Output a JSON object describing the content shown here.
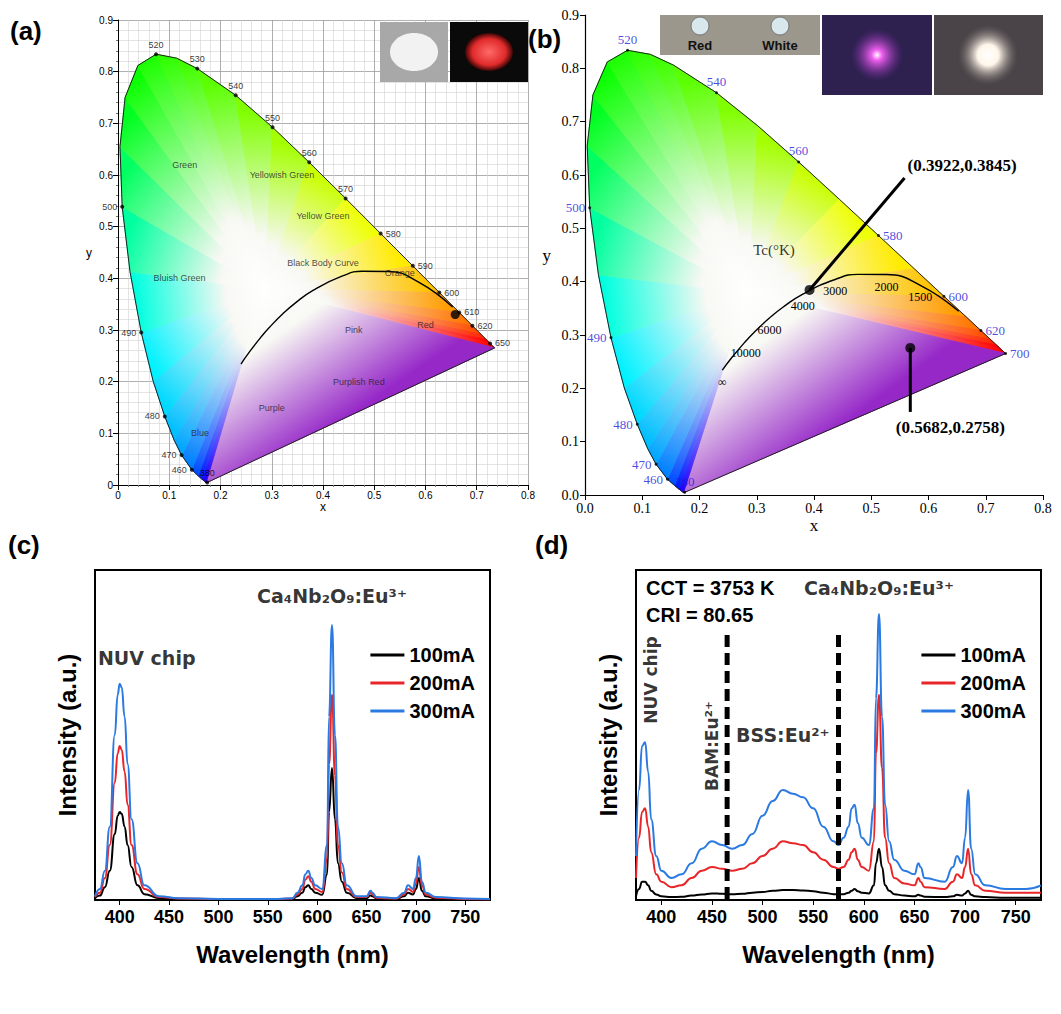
{
  "chart_data": [
    {
      "panel_label": "(a)",
      "type": "chromaticity",
      "x_label": "x",
      "y_label": "y",
      "xlim": [
        0,
        0.8
      ],
      "ylim": [
        0,
        0.9
      ],
      "xticks": [
        0,
        0.1,
        0.2,
        0.3,
        0.4,
        0.5,
        0.6,
        0.7,
        0.8
      ],
      "yticks": [
        0,
        0.1,
        0.2,
        0.3,
        0.4,
        0.5,
        0.6,
        0.7,
        0.8,
        0.9
      ],
      "grid": true,
      "locus": {
        "wavelength": [
          380,
          400,
          420,
          440,
          450,
          460,
          470,
          475,
          480,
          485,
          490,
          495,
          500,
          505,
          510,
          515,
          520,
          525,
          530,
          540,
          550,
          560,
          570,
          580,
          590,
          600,
          610,
          620,
          630,
          640,
          650,
          700
        ],
        "x": [
          0.1741,
          0.1733,
          0.1714,
          0.1644,
          0.1566,
          0.144,
          0.1241,
          0.1096,
          0.0913,
          0.0687,
          0.0454,
          0.0235,
          0.0082,
          0.0039,
          0.0139,
          0.0389,
          0.0743,
          0.1142,
          0.1547,
          0.2296,
          0.3016,
          0.3731,
          0.4441,
          0.5125,
          0.5752,
          0.627,
          0.6658,
          0.6915,
          0.7079,
          0.719,
          0.726,
          0.7347
        ],
        "y": [
          0.005,
          0.0048,
          0.0051,
          0.0109,
          0.0177,
          0.0297,
          0.0578,
          0.0868,
          0.1327,
          0.2007,
          0.295,
          0.4127,
          0.5384,
          0.6548,
          0.7502,
          0.812,
          0.8338,
          0.8262,
          0.8059,
          0.7543,
          0.6923,
          0.6245,
          0.5547,
          0.4866,
          0.4242,
          0.3725,
          0.334,
          0.3083,
          0.292,
          0.2809,
          0.274,
          0.2653
        ]
      },
      "wavelength_labels": [
        380,
        460,
        470,
        480,
        490,
        500,
        520,
        530,
        540,
        550,
        560,
        570,
        580,
        590,
        600,
        610,
        620,
        650
      ],
      "blackbody": {
        "x": [
          0.2399,
          0.2565,
          0.2807,
          0.2952,
          0.3221,
          0.3451,
          0.3805,
          0.4369,
          0.477,
          0.5267,
          0.5857,
          0.6528
        ],
        "y": [
          0.2341,
          0.2577,
          0.2884,
          0.3048,
          0.3318,
          0.3516,
          0.3768,
          0.4041,
          0.4137,
          0.4133,
          0.3931,
          0.3444
        ]
      },
      "points": [
        {
          "x": 0.658,
          "y": 0.33
        }
      ],
      "annotations": [
        {
          "text": "Green",
          "x": 0.13,
          "y": 0.62
        },
        {
          "text": "Yellowish Green",
          "x": 0.32,
          "y": 0.6
        },
        {
          "text": "Yellow Green",
          "x": 0.4,
          "y": 0.52
        },
        {
          "text": "Orange",
          "x": 0.55,
          "y": 0.41
        },
        {
          "text": "Red",
          "x": 0.6,
          "y": 0.31
        },
        {
          "text": "Pink",
          "x": 0.46,
          "y": 0.3
        },
        {
          "text": "Purplish Red",
          "x": 0.47,
          "y": 0.2
        },
        {
          "text": "Purple",
          "x": 0.3,
          "y": 0.15
        },
        {
          "text": "Blue",
          "x": 0.16,
          "y": 0.1
        },
        {
          "text": "Bluish Green",
          "x": 0.12,
          "y": 0.4
        },
        {
          "text": "Black Body Curve",
          "x": 0.4,
          "y": 0.43
        }
      ]
    },
    {
      "panel_label": "(b)",
      "type": "chromaticity",
      "x_label": "x",
      "y_label": "y",
      "xlim": [
        0,
        0.8
      ],
      "ylim": [
        0,
        0.9
      ],
      "xticks": [
        {
          "value": 0,
          "label": "0.0"
        },
        0.1,
        0.2,
        0.3,
        0.4,
        0.5,
        0.6,
        0.7,
        0.8
      ],
      "yticks": [
        {
          "value": 0,
          "label": "0.0"
        },
        0.1,
        0.2,
        0.3,
        0.4,
        0.5,
        0.6,
        0.7,
        0.8,
        0.9
      ],
      "grid": false,
      "locus": {
        "wavelength": [
          380,
          400,
          420,
          440,
          450,
          460,
          470,
          475,
          480,
          485,
          490,
          495,
          500,
          505,
          510,
          515,
          520,
          525,
          530,
          540,
          550,
          560,
          570,
          580,
          590,
          600,
          610,
          620,
          630,
          640,
          650,
          700
        ],
        "x": [
          0.1741,
          0.1733,
          0.1714,
          0.1644,
          0.1566,
          0.144,
          0.1241,
          0.1096,
          0.0913,
          0.0687,
          0.0454,
          0.0235,
          0.0082,
          0.0039,
          0.0139,
          0.0389,
          0.0743,
          0.1142,
          0.1547,
          0.2296,
          0.3016,
          0.3731,
          0.4441,
          0.5125,
          0.5752,
          0.627,
          0.6658,
          0.6915,
          0.7079,
          0.719,
          0.726,
          0.7347
        ],
        "y": [
          0.005,
          0.0048,
          0.0051,
          0.0109,
          0.0177,
          0.0297,
          0.0578,
          0.0868,
          0.1327,
          0.2007,
          0.295,
          0.4127,
          0.5384,
          0.6548,
          0.7502,
          0.812,
          0.8338,
          0.8262,
          0.8059,
          0.7543,
          0.6923,
          0.6245,
          0.5547,
          0.4866,
          0.4242,
          0.3725,
          0.334,
          0.3083,
          0.292,
          0.2809,
          0.274,
          0.2653
        ]
      },
      "wavelength_labels": [
        380,
        460,
        470,
        480,
        490,
        500,
        520,
        540,
        560,
        580,
        600,
        620,
        700
      ],
      "blackbody": {
        "x": [
          0.2399,
          0.2565,
          0.2807,
          0.2952,
          0.3221,
          0.3451,
          0.3805,
          0.4369,
          0.477,
          0.5267,
          0.5857,
          0.6528
        ],
        "y": [
          0.2341,
          0.2577,
          0.2884,
          0.3048,
          0.3318,
          0.3516,
          0.3768,
          0.4041,
          0.4137,
          0.4133,
          0.3931,
          0.3444
        ],
        "labels": [
          "∞",
          null,
          "10000",
          null,
          "6000",
          null,
          "4000",
          "3000",
          null,
          "2000",
          "1500",
          null
        ]
      },
      "points": [
        {
          "x": 0.3922,
          "y": 0.3845,
          "label": "(0.3922,0.3845)"
        },
        {
          "x": 0.5682,
          "y": 0.2758,
          "label": "(0.5682,0.2758)"
        }
      ],
      "annotations": [
        {
          "text": "Tc(°K)",
          "x": 0.33,
          "y": 0.46
        }
      ],
      "insets": [
        "Red",
        "White"
      ]
    },
    {
      "panel_label": "(c)",
      "type": "line",
      "x_label": "Wavelength (nm)",
      "y_label": "Intensity (a.u.)",
      "xlim": [
        375,
        775
      ],
      "xticks": [
        400,
        450,
        500,
        550,
        600,
        650,
        700,
        750
      ],
      "ylim": [
        0,
        0.9
      ],
      "tick_labels": "x",
      "legend": "upper right",
      "x": [
        375,
        380,
        385,
        390,
        395,
        398,
        400,
        402,
        405,
        408,
        412,
        418,
        425,
        440,
        460,
        500,
        560,
        575,
        580,
        585,
        588,
        591,
        594,
        598,
        605,
        610,
        612,
        615,
        618,
        621,
        625,
        630,
        640,
        650,
        654,
        656,
        660,
        680,
        688,
        692,
        697,
        700,
        703,
        706,
        710,
        720,
        750,
        775
      ],
      "series": [
        {
          "name": "100mA",
          "color": "#000000",
          "values": [
            0.005,
            0.012,
            0.035,
            0.08,
            0.18,
            0.23,
            0.24,
            0.235,
            0.2,
            0.15,
            0.09,
            0.04,
            0.016,
            0.005,
            0.003,
            0.002,
            0.002,
            0.003,
            0.01,
            0.02,
            0.035,
            0.04,
            0.03,
            0.02,
            0.014,
            0.07,
            0.24,
            0.36,
            0.22,
            0.1,
            0.05,
            0.02,
            0.005,
            0.005,
            0.012,
            0.01,
            0.004,
            0.003,
            0.01,
            0.02,
            0.015,
            0.03,
            0.06,
            0.025,
            0.01,
            0.004,
            0.002,
            0.002
          ]
        },
        {
          "name": "200mA",
          "color": "#e8262a",
          "values": [
            0.008,
            0.02,
            0.06,
            0.15,
            0.32,
            0.4,
            0.42,
            0.41,
            0.35,
            0.26,
            0.15,
            0.07,
            0.03,
            0.008,
            0.004,
            0.003,
            0.003,
            0.004,
            0.015,
            0.03,
            0.055,
            0.065,
            0.05,
            0.03,
            0.022,
            0.11,
            0.37,
            0.56,
            0.34,
            0.15,
            0.075,
            0.03,
            0.008,
            0.008,
            0.02,
            0.015,
            0.006,
            0.004,
            0.015,
            0.03,
            0.022,
            0.045,
            0.09,
            0.04,
            0.015,
            0.006,
            0.003,
            0.002
          ]
        },
        {
          "name": "300mA",
          "color": "#2a7ae2",
          "values": [
            0.01,
            0.03,
            0.08,
            0.2,
            0.45,
            0.56,
            0.59,
            0.58,
            0.5,
            0.37,
            0.22,
            0.1,
            0.04,
            0.01,
            0.005,
            0.003,
            0.003,
            0.005,
            0.02,
            0.04,
            0.07,
            0.08,
            0.06,
            0.04,
            0.03,
            0.15,
            0.5,
            0.75,
            0.45,
            0.2,
            0.1,
            0.04,
            0.01,
            0.01,
            0.025,
            0.02,
            0.008,
            0.005,
            0.02,
            0.04,
            0.03,
            0.06,
            0.12,
            0.05,
            0.02,
            0.008,
            0.004,
            0.003
          ]
        }
      ],
      "annotations": [
        {
          "text": "NUV chip",
          "x": 378,
          "y": 0.66
        },
        {
          "text": "Ca₄Nb₂O₉:Eu³⁺",
          "x": 615,
          "y": 0.83
        }
      ]
    },
    {
      "panel_label": "(d)",
      "type": "line",
      "x_label": "Wavelength (nm)",
      "y_label": "Intensity (a.u.)",
      "xlim": [
        375,
        775
      ],
      "xticks": [
        400,
        450,
        500,
        550,
        600,
        650,
        700,
        750
      ],
      "ylim": [
        0,
        0.9
      ],
      "tick_labels": "x",
      "legend": "upper right",
      "x": [
        375,
        378,
        381,
        384,
        387,
        390,
        395,
        400,
        410,
        420,
        430,
        440,
        450,
        460,
        470,
        480,
        490,
        500,
        510,
        520,
        530,
        540,
        550,
        560,
        570,
        575,
        580,
        585,
        588,
        591,
        594,
        598,
        605,
        610,
        612,
        615,
        618,
        621,
        625,
        630,
        640,
        650,
        654,
        656,
        660,
        680,
        688,
        692,
        697,
        700,
        703,
        706,
        710,
        720,
        740,
        760,
        775
      ],
      "series": [
        {
          "name": "100mA",
          "color": "#000000",
          "values": [
            0.01,
            0.03,
            0.05,
            0.05,
            0.04,
            0.025,
            0.015,
            0.01,
            0.008,
            0.009,
            0.012,
            0.015,
            0.018,
            0.017,
            0.016,
            0.017,
            0.02,
            0.022,
            0.025,
            0.027,
            0.027,
            0.026,
            0.024,
            0.02,
            0.016,
            0.015,
            0.016,
            0.02,
            0.025,
            0.03,
            0.024,
            0.02,
            0.018,
            0.04,
            0.1,
            0.14,
            0.09,
            0.04,
            0.025,
            0.016,
            0.012,
            0.01,
            0.014,
            0.012,
            0.009,
            0.008,
            0.01,
            0.014,
            0.012,
            0.018,
            0.025,
            0.014,
            0.01,
            0.008,
            0.006,
            0.006,
            0.006
          ]
        },
        {
          "name": "200mA",
          "color": "#e8262a",
          "values": [
            0.06,
            0.17,
            0.24,
            0.25,
            0.2,
            0.13,
            0.07,
            0.05,
            0.035,
            0.04,
            0.06,
            0.08,
            0.09,
            0.085,
            0.08,
            0.085,
            0.1,
            0.12,
            0.14,
            0.16,
            0.155,
            0.15,
            0.13,
            0.11,
            0.09,
            0.085,
            0.09,
            0.11,
            0.13,
            0.14,
            0.11,
            0.09,
            0.08,
            0.16,
            0.4,
            0.56,
            0.36,
            0.17,
            0.1,
            0.06,
            0.045,
            0.04,
            0.06,
            0.05,
            0.035,
            0.03,
            0.05,
            0.07,
            0.06,
            0.09,
            0.14,
            0.07,
            0.04,
            0.025,
            0.02,
            0.02,
            0.02
          ]
        },
        {
          "name": "300mA",
          "color": "#2a7ae2",
          "values": [
            0.12,
            0.3,
            0.42,
            0.43,
            0.35,
            0.22,
            0.12,
            0.08,
            0.06,
            0.07,
            0.1,
            0.14,
            0.16,
            0.15,
            0.14,
            0.15,
            0.18,
            0.23,
            0.27,
            0.3,
            0.29,
            0.28,
            0.25,
            0.2,
            0.16,
            0.15,
            0.17,
            0.2,
            0.25,
            0.26,
            0.21,
            0.17,
            0.15,
            0.25,
            0.55,
            0.78,
            0.5,
            0.26,
            0.16,
            0.11,
            0.08,
            0.07,
            0.1,
            0.09,
            0.06,
            0.05,
            0.09,
            0.12,
            0.1,
            0.17,
            0.3,
            0.14,
            0.07,
            0.04,
            0.03,
            0.03,
            0.04
          ]
        }
      ],
      "notes": [
        "CCT = 3753 K",
        "CRI = 80.65"
      ],
      "dividers": [
        465,
        575
      ],
      "annotations": [
        {
          "text": "NUV chip",
          "x": 390,
          "y": 0.6
        },
        {
          "text": "BAM:Eu²⁺",
          "x": 450,
          "y": 0.42
        },
        {
          "text": "BSS:Eu²⁺",
          "x": 520,
          "y": 0.45
        },
        {
          "text": "Ca₄Nb₂O₉:Eu³⁺",
          "x": 615,
          "y": 0.85
        }
      ]
    }
  ]
}
